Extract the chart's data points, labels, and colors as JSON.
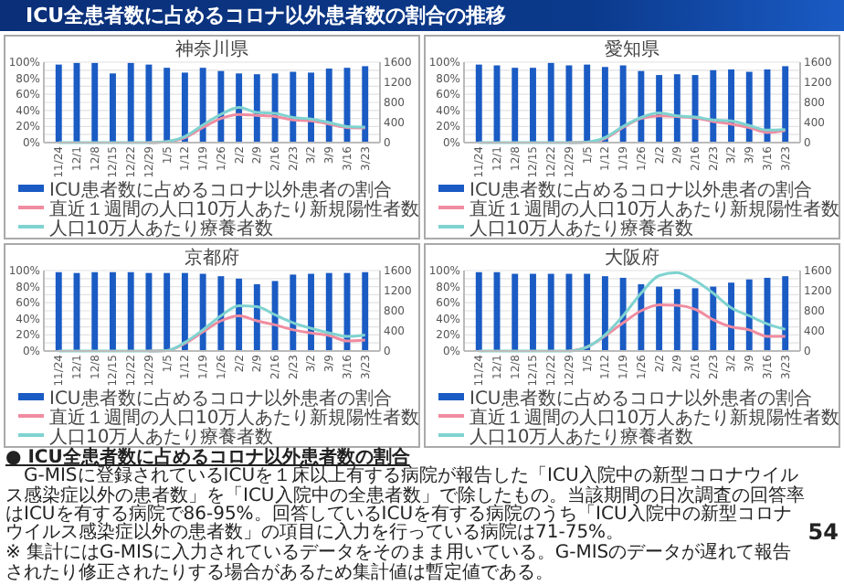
{
  "chart_data": [
    {
      "type": "bar",
      "title": "神奈川県",
      "categories": [
        "11/24",
        "12/1",
        "12/8",
        "12/15",
        "12/22",
        "12/29",
        "1/5",
        "1/12",
        "1/19",
        "1/26",
        "2/2",
        "2/9",
        "2/16",
        "2/23",
        "3/2",
        "3/9",
        "3/16",
        "3/23"
      ],
      "series": [
        {
          "name": "ICU患者数に占めるコロナ以外患者の割合",
          "type": "bar",
          "color": "#1a5bc4",
          "values": [
            97,
            99,
            99,
            86,
            99,
            97,
            93,
            87,
            93,
            89,
            86,
            85,
            86,
            88,
            87,
            92,
            93,
            95
          ]
        },
        {
          "name": "直近１週間の人口10万人あたり新規陽性者数",
          "type": "line",
          "axis": "y2",
          "color": "#f08ca0",
          "values": [
            null,
            null,
            null,
            null,
            null,
            0,
            20,
            100,
            300,
            480,
            560,
            540,
            520,
            450,
            430,
            370,
            300,
            290
          ]
        },
        {
          "name": "人口10万人あたり療養者数",
          "type": "line",
          "axis": "y2",
          "color": "#7fd3d0",
          "values": [
            0,
            0,
            0,
            0,
            0,
            0,
            20,
            120,
            350,
            560,
            700,
            600,
            580,
            500,
            470,
            400,
            320,
            310
          ]
        }
      ],
      "ylim": [
        0,
        100
      ],
      "yticks": [
        {
          "value": 0,
          "label": "0%"
        },
        {
          "value": 10,
          "label": null
        },
        {
          "value": 20,
          "label": "20%"
        },
        {
          "value": 30,
          "label": null
        },
        {
          "value": 40,
          "label": "40%"
        },
        {
          "value": 50,
          "label": null
        },
        {
          "value": 60,
          "label": "60%"
        },
        {
          "value": 70,
          "label": null
        },
        {
          "value": 80,
          "label": "80%"
        },
        {
          "value": 90,
          "label": null
        },
        {
          "value": 100,
          "label": "100%"
        }
      ],
      "y2lim": [
        0,
        1600
      ],
      "y2ticks": [
        0,
        400,
        800,
        1200,
        1600
      ],
      "grid": "y",
      "legend": "bottom",
      "marker": "none"
    },
    {
      "type": "bar",
      "title": "愛知県",
      "categories": [
        "11/24",
        "12/1",
        "12/8",
        "12/15",
        "12/22",
        "12/29",
        "1/5",
        "1/12",
        "1/19",
        "1/26",
        "2/2",
        "2/9",
        "2/16",
        "2/23",
        "3/2",
        "3/9",
        "3/16",
        "3/23"
      ],
      "series": [
        {
          "name": "ICU患者数に占めるコロナ以外患者の割合",
          "type": "bar",
          "color": "#1a5bc4",
          "values": [
            97,
            96,
            93,
            93,
            99,
            96,
            97,
            94,
            96,
            89,
            84,
            85,
            84,
            90,
            91,
            88,
            91,
            95
          ]
        },
        {
          "name": "直近１週間の人口10万人あたり新規陽性者数",
          "type": "line",
          "axis": "y2",
          "color": "#f08ca0",
          "values": [
            null,
            null,
            null,
            null,
            null,
            0,
            10,
            80,
            300,
            480,
            530,
            520,
            490,
            420,
            370,
            300,
            200,
            240
          ]
        },
        {
          "name": "人口10万人あたり療養者数",
          "type": "line",
          "axis": "y2",
          "color": "#7fd3d0",
          "values": [
            0,
            0,
            0,
            0,
            0,
            0,
            10,
            100,
            320,
            500,
            590,
            530,
            510,
            450,
            430,
            340,
            250,
            260
          ]
        }
      ],
      "ylim": [
        0,
        100
      ],
      "yticks": [
        {
          "value": 0,
          "label": "0%"
        },
        {
          "value": 10,
          "label": null
        },
        {
          "value": 20,
          "label": "20%"
        },
        {
          "value": 30,
          "label": null
        },
        {
          "value": 40,
          "label": "40%"
        },
        {
          "value": 50,
          "label": null
        },
        {
          "value": 60,
          "label": "60%"
        },
        {
          "value": 70,
          "label": null
        },
        {
          "value": 80,
          "label": "80%"
        },
        {
          "value": 90,
          "label": null
        },
        {
          "value": 100,
          "label": "100%"
        }
      ],
      "y2lim": [
        0,
        1600
      ],
      "y2ticks": [
        0,
        400,
        800,
        1200,
        1600
      ],
      "grid": "y",
      "legend": "bottom",
      "marker": "none"
    },
    {
      "type": "bar",
      "title": "京都府",
      "categories": [
        "11/24",
        "12/1",
        "12/8",
        "12/15",
        "12/22",
        "12/29",
        "1/5",
        "1/12",
        "1/19",
        "1/26",
        "2/2",
        "2/9",
        "2/16",
        "2/23",
        "3/2",
        "3/9",
        "3/16",
        "3/23"
      ],
      "series": [
        {
          "name": "ICU患者数に占めるコロナ以外患者の割合",
          "type": "bar",
          "color": "#1a5bc4",
          "values": [
            98,
            97,
            98,
            98,
            98,
            97,
            97,
            97,
            96,
            93,
            90,
            83,
            87,
            95,
            96,
            97,
            97,
            98
          ]
        },
        {
          "name": "直近１週間の人口10万人あたり新規陽性者数",
          "type": "line",
          "axis": "y2",
          "color": "#f08ca0",
          "values": [
            null,
            null,
            null,
            null,
            null,
            0,
            10,
            150,
            380,
            600,
            700,
            600,
            520,
            420,
            360,
            310,
            200,
            220
          ]
        },
        {
          "name": "人口10万人あたり療養者数",
          "type": "line",
          "axis": "y2",
          "color": "#7fd3d0",
          "values": [
            0,
            0,
            0,
            0,
            0,
            0,
            10,
            170,
            420,
            700,
            900,
            880,
            720,
            560,
            450,
            360,
            290,
            320
          ]
        }
      ],
      "ylim": [
        0,
        100
      ],
      "yticks": [
        {
          "value": 0,
          "label": "0%"
        },
        {
          "value": 10,
          "label": null
        },
        {
          "value": 20,
          "label": "20%"
        },
        {
          "value": 30,
          "label": null
        },
        {
          "value": 40,
          "label": "40%"
        },
        {
          "value": 50,
          "label": null
        },
        {
          "value": 60,
          "label": "60%"
        },
        {
          "value": 70,
          "label": null
        },
        {
          "value": 80,
          "label": "80%"
        },
        {
          "value": 90,
          "label": null
        },
        {
          "value": 100,
          "label": "100%"
        }
      ],
      "y2lim": [
        0,
        1600
      ],
      "y2ticks": [
        0,
        400,
        800,
        1200,
        1600
      ],
      "grid": "y",
      "legend": "bottom",
      "marker": "none"
    },
    {
      "type": "bar",
      "title": "大阪府",
      "categories": [
        "11/24",
        "12/1",
        "12/8",
        "12/15",
        "12/22",
        "12/29",
        "1/5",
        "1/12",
        "1/19",
        "1/26",
        "2/2",
        "2/9",
        "2/16",
        "2/23",
        "3/2",
        "3/9",
        "3/16",
        "3/23"
      ],
      "series": [
        {
          "name": "ICU患者数に占めるコロナ以外患者の割合",
          "type": "bar",
          "color": "#1a5bc4",
          "values": [
            98,
            98,
            96,
            96,
            96,
            96,
            96,
            93,
            91,
            83,
            80,
            77,
            78,
            80,
            85,
            89,
            91,
            93
          ]
        },
        {
          "name": "直近１週間の人口10万人あたり新規陽性者数",
          "type": "line",
          "axis": "y2",
          "color": "#f08ca0",
          "values": [
            null,
            null,
            null,
            null,
            null,
            0,
            80,
            300,
            560,
            800,
            920,
            910,
            830,
            620,
            480,
            420,
            290,
            290
          ]
        },
        {
          "name": "人口10万人あたり療養者数",
          "type": "line",
          "axis": "y2",
          "color": "#7fd3d0",
          "values": [
            0,
            0,
            0,
            0,
            0,
            0,
            80,
            320,
            700,
            1150,
            1500,
            1560,
            1400,
            1150,
            860,
            700,
            540,
            430
          ]
        }
      ],
      "ylim": [
        0,
        100
      ],
      "yticks": [
        {
          "value": 0,
          "label": "0%"
        },
        {
          "value": 10,
          "label": null
        },
        {
          "value": 20,
          "label": "20%"
        },
        {
          "value": 30,
          "label": null
        },
        {
          "value": 40,
          "label": "40%"
        },
        {
          "value": 50,
          "label": null
        },
        {
          "value": 60,
          "label": "60%"
        },
        {
          "value": 70,
          "label": null
        },
        {
          "value": 80,
          "label": "80%"
        },
        {
          "value": 90,
          "label": null
        },
        {
          "value": 100,
          "label": "100%"
        }
      ],
      "y2lim": [
        0,
        1600
      ],
      "y2ticks": [
        0,
        400,
        800,
        1200,
        1600
      ],
      "grid": "y",
      "legend": "bottom",
      "marker": "none"
    },
    {
      "type": "other",
      "title": "ICU全患者数に占めるコロナ以外患者数の割合の推移",
      "annotations": [
        "● ICU全患者数に占めるコロナ以外患者数の割合",
        "G-MISに登録されているICUを１床以上有する病院が報告した「ICU入院中の新型コロナウイルス感染症以外の患者数」を「ICU入院中の全患者数」で除したもの。当該期間の日次調査の回答率はICUを有する病院で86-95%。回答しているICUを有する病院のうち「ICU入院中の新型コロナウイルス感染症以外の患者数」の項目に入力を行っている病院は71-75%。",
        "※ 集計にはG-MISに入力されているデータをそのまま用いている。G-MISのデータが遅れて報告されたり修正されたりする場合があるため集計値は暫定値である。",
        "54"
      ]
    }
  ]
}
